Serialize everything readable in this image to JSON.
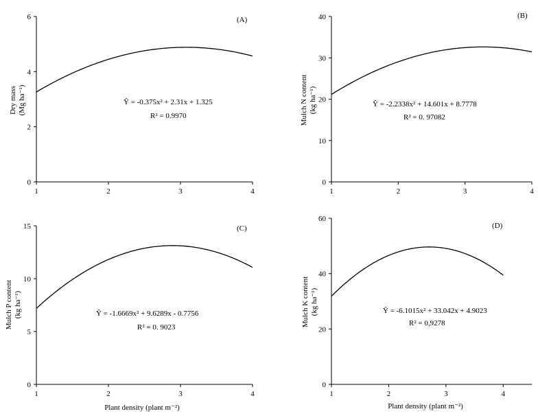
{
  "figure": {
    "x_axis_label": "Plant density (plant m⁻²)"
  },
  "chart_data": [
    {
      "type": "line",
      "panel_label": "(A)",
      "ylabel_line1": "Dry mass",
      "ylabel_line2": "(Mg ha⁻¹)",
      "xlabel": "",
      "xlim": [
        1,
        4
      ],
      "ylim": [
        0,
        6
      ],
      "xticks": [
        1,
        2,
        3,
        4
      ],
      "yticks": [
        0,
        2,
        4,
        6
      ],
      "equation": "Ŷ = -0.375x² + 2.31x + 1.325",
      "r2": "R² = 0.9970",
      "coefficients": {
        "a": -0.375,
        "b": 2.31,
        "c": 1.325
      },
      "grid": false,
      "line_color": "#000000"
    },
    {
      "type": "line",
      "panel_label": "(B)",
      "ylabel_line1": "Mulch N content",
      "ylabel_line2": "(kg ha⁻¹)",
      "xlabel": "",
      "xlim": [
        1,
        4
      ],
      "ylim": [
        0,
        40
      ],
      "xticks": [
        1,
        2,
        3,
        4
      ],
      "yticks": [
        0,
        10,
        20,
        30,
        40
      ],
      "equation": "Ŷ = -2.2338x² + 14.601x + 8.7778",
      "r2": "R² = 0. 97082",
      "coefficients": {
        "a": -2.2338,
        "b": 14.601,
        "c": 8.7778
      },
      "grid": false,
      "line_color": "#000000"
    },
    {
      "type": "line",
      "panel_label": "(C)",
      "ylabel_line1": "Mulch P content",
      "ylabel_line2": "(kg ha⁻¹)",
      "xlabel": "Plant density (plant m⁻²)",
      "xlim": [
        1,
        4
      ],
      "ylim": [
        0,
        15
      ],
      "xticks": [
        1,
        2,
        3,
        4
      ],
      "yticks": [
        0,
        5,
        10,
        15
      ],
      "equation": "Ŷ = -1.6669x² + 9.6289x - 0.7756",
      "r2": "R² = 0. 9023",
      "coefficients": {
        "a": -1.6669,
        "b": 9.6289,
        "c": -0.7756
      },
      "grid": false,
      "line_color": "#000000"
    },
    {
      "type": "line",
      "panel_label": "(D)",
      "ylabel_line1": "Mulch K content",
      "ylabel_line2": "(kg ha⁻¹)",
      "xlabel": "Plant density (plant m⁻²)",
      "xlim": [
        1,
        4.5
      ],
      "ylim": [
        0,
        60
      ],
      "xticks": [
        1,
        2,
        3,
        4
      ],
      "yticks": [
        0,
        20,
        40,
        60
      ],
      "curve_x_range": [
        1,
        4
      ],
      "equation": "Ŷ = -6.1015x² + 33.042x + 4.9023",
      "r2": "R² = 0,9278",
      "coefficients": {
        "a": -6.1015,
        "b": 33.042,
        "c": 4.9023
      },
      "grid": false,
      "line_color": "#000000"
    }
  ]
}
